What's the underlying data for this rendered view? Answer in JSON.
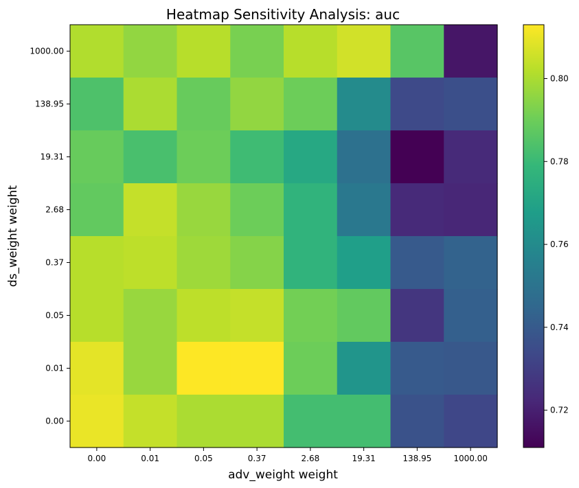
{
  "chart_data": {
    "type": "heatmap",
    "title": "Heatmap Sensitivity Analysis: auc",
    "xlabel": "adv_weight weight",
    "ylabel": "ds_weight weight",
    "x_categories": [
      "0.00",
      "0.01",
      "0.05",
      "0.37",
      "2.68",
      "19.31",
      "138.95",
      "1000.00"
    ],
    "y_categories": [
      "1000.00",
      "138.95",
      "19.31",
      "2.68",
      "0.37",
      "0.05",
      "0.01",
      "0.00"
    ],
    "values": [
      [
        0.801,
        0.796,
        0.802,
        0.792,
        0.802,
        0.806,
        0.786,
        0.717
      ],
      [
        0.784,
        0.8,
        0.789,
        0.796,
        0.79,
        0.76,
        0.734,
        0.736
      ],
      [
        0.789,
        0.783,
        0.79,
        0.781,
        0.772,
        0.749,
        0.711,
        0.723
      ],
      [
        0.788,
        0.804,
        0.797,
        0.79,
        0.777,
        0.752,
        0.723,
        0.722
      ],
      [
        0.802,
        0.803,
        0.798,
        0.794,
        0.777,
        0.768,
        0.74,
        0.743
      ],
      [
        0.802,
        0.797,
        0.803,
        0.804,
        0.791,
        0.788,
        0.727,
        0.742
      ],
      [
        0.809,
        0.797,
        0.813,
        0.813,
        0.79,
        0.764,
        0.74,
        0.739
      ],
      [
        0.81,
        0.804,
        0.8,
        0.8,
        0.782,
        0.782,
        0.737,
        0.733
      ]
    ],
    "colormap": "viridis",
    "colorbar": {
      "min": 0.711,
      "max": 0.813,
      "ticks": [
        0.72,
        0.74,
        0.76,
        0.78,
        0.8
      ],
      "tick_labels": [
        "0.72",
        "0.74",
        "0.76",
        "0.78",
        "0.80"
      ]
    },
    "grid": false
  }
}
